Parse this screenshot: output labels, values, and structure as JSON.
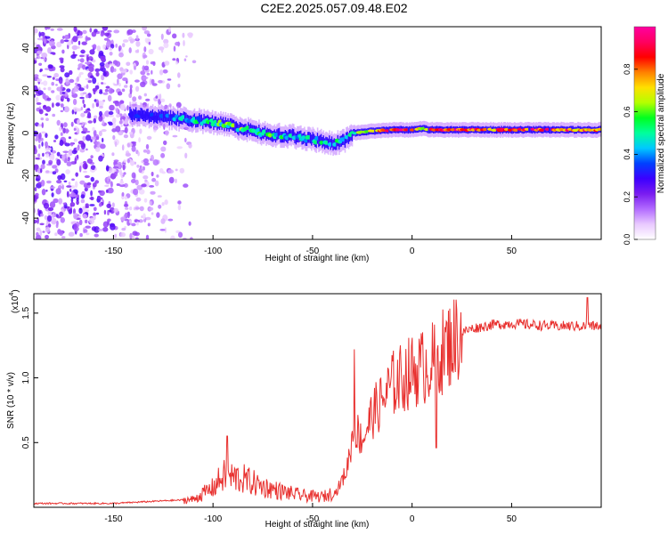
{
  "title": "C2E2.2025.057.09.48.E02",
  "colors": {
    "trace": "#e8302e",
    "frame": "#000000",
    "colormap": [
      "#ffffff",
      "#e9c9ff",
      "#b26bff",
      "#7a1cf0",
      "#3b00ff",
      "#0040ff",
      "#00c8ff",
      "#00ff9c",
      "#00ff20",
      "#b4ff00",
      "#ffe000",
      "#ff8000",
      "#ff0000",
      "#ff0060",
      "#ff00a0"
    ]
  },
  "chart_data": [
    {
      "type": "heatmap",
      "title": "C2E2.2025.057.09.48.E02",
      "xlabel": "Height of straight line (km)",
      "ylabel": "Frequency (Hz)",
      "xlim": [
        -190,
        95
      ],
      "ylim": [
        -50,
        50
      ],
      "xticks": [
        "-150",
        "-100",
        "-50",
        "0",
        "50"
      ],
      "yticks": [
        "-40",
        "-20",
        "0",
        "20",
        "40"
      ],
      "colorbar": {
        "label": "Normalized spectral amplitude",
        "range": [
          0,
          1
        ],
        "ticks": [
          "0.0",
          "0.2",
          "0.4",
          "0.6",
          "0.8"
        ]
      },
      "ridge": {
        "x": [
          -142,
          -130,
          -120,
          -110,
          -100,
          -90,
          -80,
          -70,
          -60,
          -50,
          -40,
          -35,
          -30,
          -20,
          -10,
          0,
          5,
          10,
          20,
          40,
          60,
          80,
          95
        ],
        "y": [
          9,
          8,
          7,
          6,
          5,
          3,
          1,
          -1,
          -1.5,
          -3,
          -5,
          -4,
          0,
          1,
          1.5,
          1.5,
          2,
          1.5,
          1.5,
          1.5,
          1.5,
          1.5,
          1.5
        ],
        "amplitude": [
          0.3,
          0.25,
          0.35,
          0.45,
          0.5,
          0.55,
          0.55,
          0.5,
          0.45,
          0.45,
          0.5,
          0.45,
          0.45,
          0.7,
          0.9,
          0.8,
          0.7,
          0.9,
          0.85,
          0.8,
          0.85,
          0.8,
          0.8
        ]
      },
      "grid": false
    },
    {
      "type": "line",
      "xlabel": "Height of straight line (km)",
      "ylabel": "SNR (10 * v/v)",
      "yscale_label": "(x10",
      "yscale_exp": "4",
      "xlim": [
        -190,
        95
      ],
      "ylim": [
        0,
        1.65
      ],
      "xticks": [
        "-150",
        "-100",
        "-50",
        "0",
        "50"
      ],
      "yticks": [
        "0.5",
        "1.0",
        "1.5"
      ],
      "series_profile": {
        "x": [
          -190,
          -150,
          -125,
          -110,
          -100,
          -95,
          -85,
          -75,
          -65,
          -55,
          -45,
          -38,
          -33,
          -29,
          -25,
          -20,
          -15,
          -10,
          -5,
          0,
          5,
          10,
          15,
          20,
          25,
          30,
          40,
          50,
          60,
          70,
          80,
          90,
          95
        ],
        "y": [
          0.03,
          0.03,
          0.05,
          0.06,
          0.15,
          0.24,
          0.22,
          0.16,
          0.12,
          0.09,
          0.08,
          0.12,
          0.28,
          0.62,
          0.52,
          0.72,
          0.82,
          0.95,
          1.0,
          1.05,
          1.08,
          1.12,
          1.2,
          1.28,
          1.35,
          1.38,
          1.41,
          1.42,
          1.41,
          1.4,
          1.4,
          1.4,
          1.4
        ]
      },
      "spikes": [
        {
          "x": -93,
          "y": 0.55
        },
        {
          "x": -29,
          "y": 1.22
        },
        {
          "x": 12,
          "y": 1.56
        },
        {
          "x": 12,
          "y": 0.46
        },
        {
          "x": 88,
          "y": 1.62
        }
      ],
      "grid": false
    }
  ]
}
